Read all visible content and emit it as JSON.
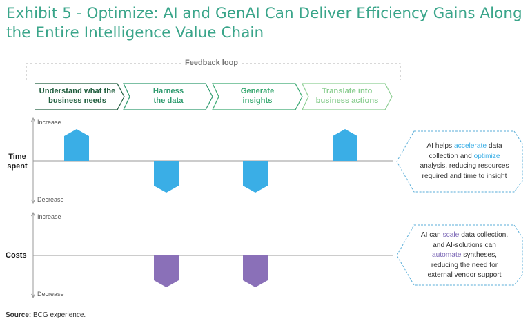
{
  "title": "Exhibit 5 - Optimize: AI and GenAI Can Deliver Efficiency Gains Along the Entire Intelligence Value Chain",
  "feedback_label": "Feedback loop",
  "stages": [
    {
      "line1": "Understand what the",
      "line2": "business needs",
      "color": "#1f5d3d"
    },
    {
      "line1": "Harness",
      "line2": "the data",
      "color": "#2e9a6e"
    },
    {
      "line1": "Generate",
      "line2": "insights",
      "color": "#3aa972"
    },
    {
      "line1": "Translate into",
      "line2": "business actions",
      "color": "#8ecf94"
    }
  ],
  "rows": {
    "time": {
      "label_line1": "Time",
      "label_line2": "spent",
      "increase": "Increase",
      "decrease": "Decrease",
      "changes": [
        "increase",
        "decrease",
        "decrease",
        "increase"
      ],
      "color": "#3aaee6"
    },
    "costs": {
      "label": "Costs",
      "increase": "Increase",
      "decrease": "Decrease",
      "changes": [
        "none",
        "decrease",
        "decrease",
        "none"
      ],
      "color": "#8a70b8"
    }
  },
  "callouts": {
    "time": {
      "l1_pre": "AI helps ",
      "l1_hl": "accelerate",
      "l1_post": " data",
      "l2_pre": "collection and ",
      "l2_hl": "optimize",
      "l3": "analysis, reducing resources",
      "l4": "required and time to insight"
    },
    "costs": {
      "l1_pre": "AI can ",
      "l1_hl": "scale",
      "l1_post": " data collection,",
      "l2": "and AI-solutions can",
      "l3_hl": "automate",
      "l3_post": " syntheses,",
      "l4": "reducing the need for",
      "l5": "external vendor support"
    }
  },
  "source_label": "Source:",
  "source_text": " BCG experience."
}
